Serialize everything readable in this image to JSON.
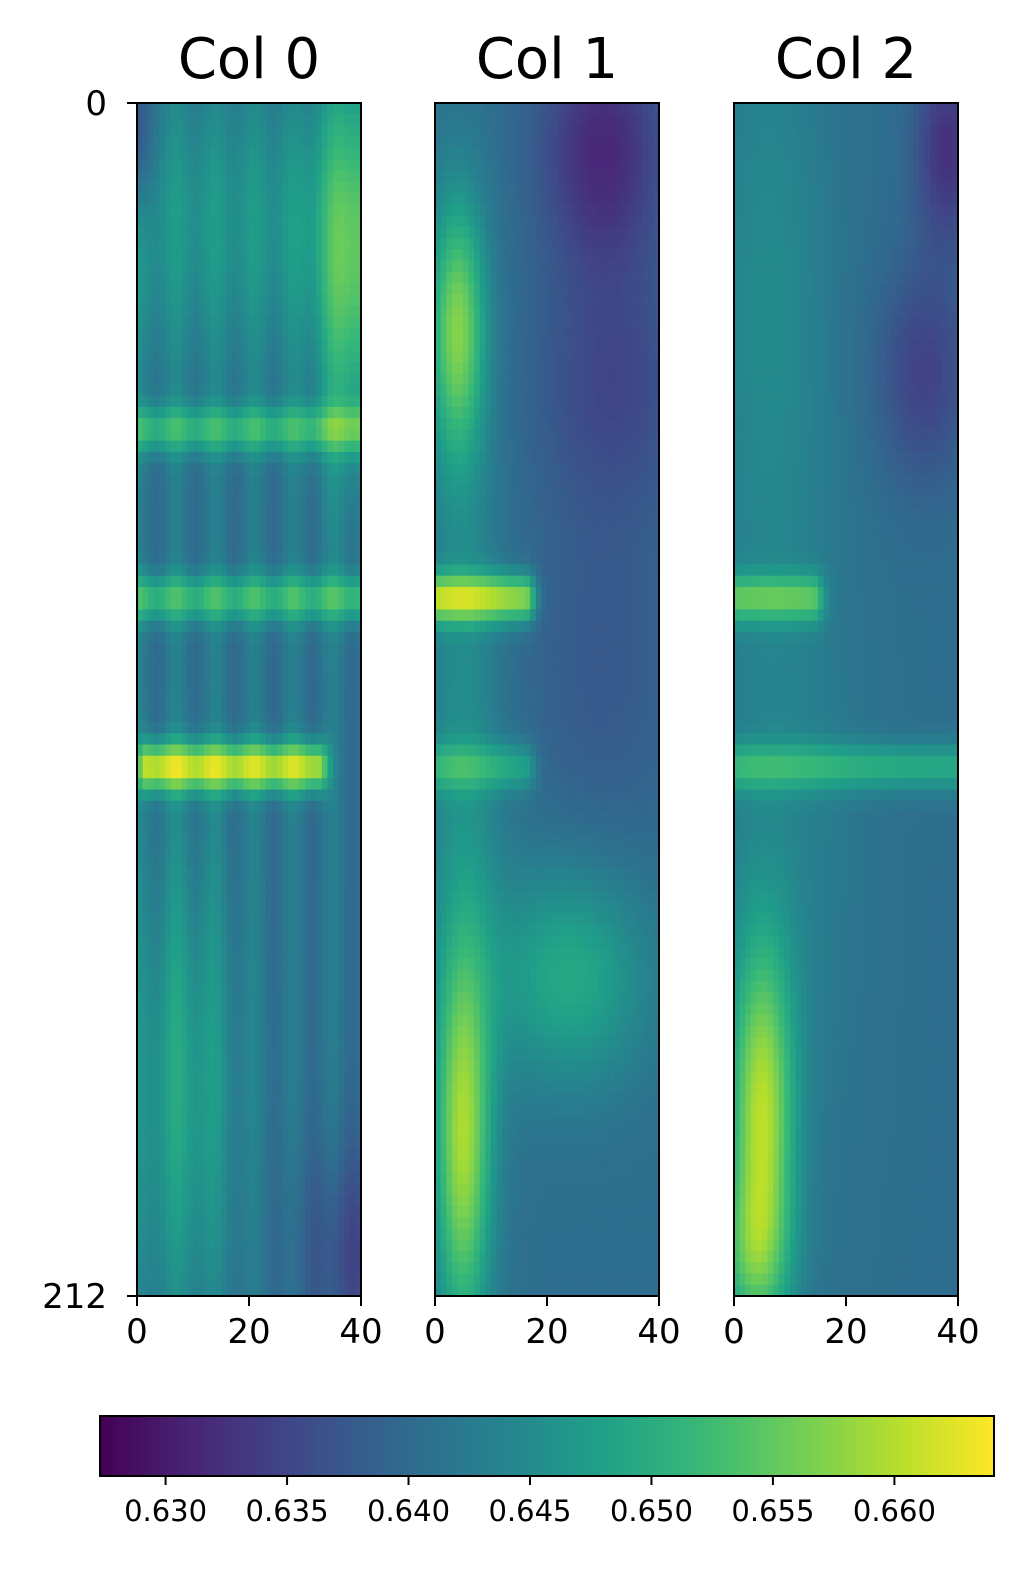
{
  "chart_data": {
    "type": "heatmap",
    "colormap": "viridis",
    "panels": [
      {
        "title": "Col 0",
        "x_ticks": [
          0,
          20,
          40
        ],
        "x_range": [
          0,
          40
        ],
        "y_ticks": [
          0,
          212
        ],
        "y_range": [
          0,
          212
        ],
        "y_inverted": true,
        "hot_bands": [
          {
            "y": 58,
            "x_from": 0,
            "x_to": 40,
            "value": 0.652
          },
          {
            "y": 88,
            "x_from": 0,
            "x_to": 40,
            "value": 0.653
          },
          {
            "y": 118,
            "x_from": 2,
            "x_to": 32,
            "value": 0.662
          }
        ]
      },
      {
        "title": "Col 1",
        "x_ticks": [
          0,
          20,
          40
        ],
        "x_range": [
          0,
          40
        ],
        "y_ticks": [],
        "hot_bands": [
          {
            "y": 88,
            "x_from": 0,
            "x_to": 16,
            "value": 0.66
          },
          {
            "y": 118,
            "x_from": 0,
            "x_to": 16,
            "value": 0.65
          }
        ]
      },
      {
        "title": "Col 2",
        "x_ticks": [
          0,
          20,
          40
        ],
        "x_range": [
          0,
          40
        ],
        "y_ticks": [],
        "hot_bands": [
          {
            "y": 88,
            "x_from": 0,
            "x_to": 14,
            "value": 0.654
          },
          {
            "y": 118,
            "x_from": 0,
            "x_to": 40,
            "value": 0.651
          }
        ]
      }
    ],
    "colorbar": {
      "orientation": "horizontal",
      "vmin": 0.6273,
      "vmax": 0.6641,
      "ticks": [
        0.63,
        0.635,
        0.64,
        0.645,
        0.65,
        0.655,
        0.66
      ],
      "tick_labels": [
        "0.630",
        "0.635",
        "0.640",
        "0.645",
        "0.650",
        "0.655",
        "0.660"
      ]
    }
  }
}
